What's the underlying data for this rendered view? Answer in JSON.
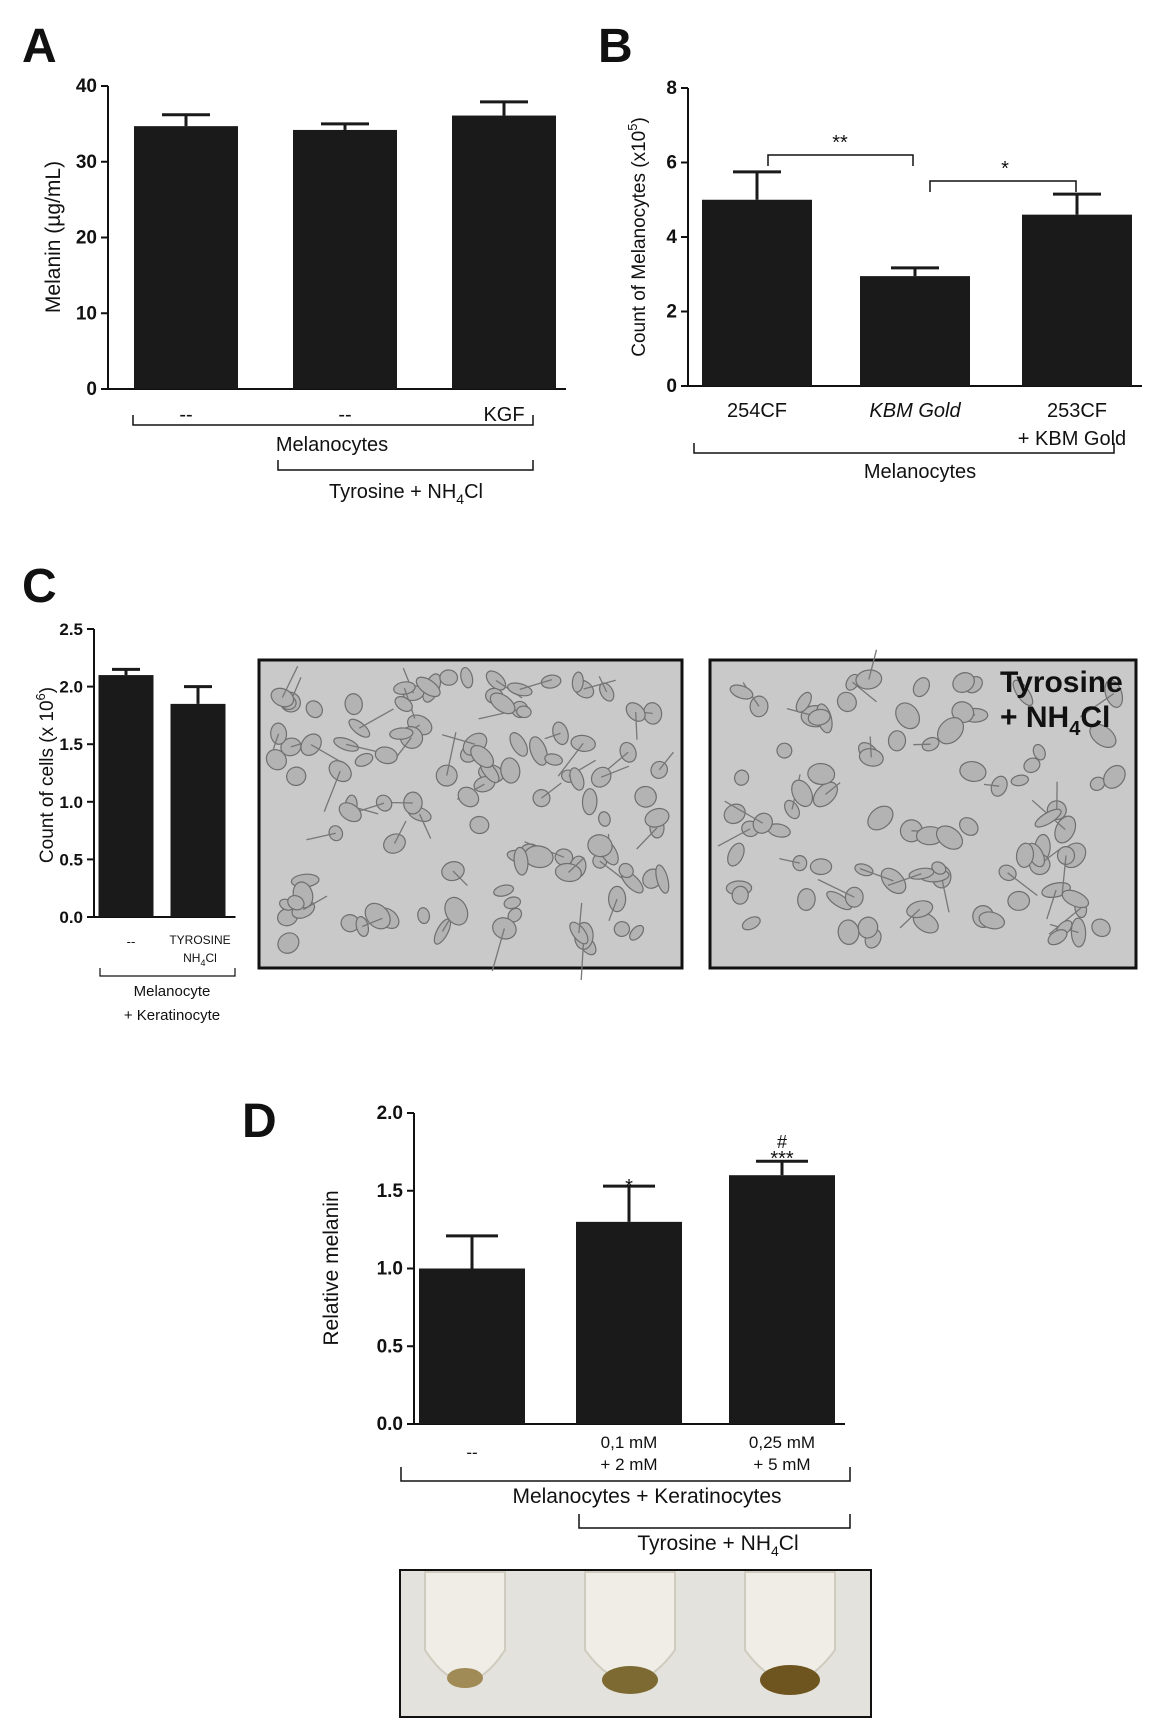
{
  "panels": {
    "A": {
      "letter": "A"
    },
    "B": {
      "letter": "B"
    },
    "C": {
      "letter": "C",
      "photo_label_line1": "Tyrosine",
      "photo_label_line2_prefix": "+ NH",
      "photo_label_line2_sub": "4",
      "photo_label_line2_suffix": "Cl"
    },
    "D": {
      "letter": "D"
    }
  },
  "colors": {
    "bar": "#1a1a1a",
    "axis": "#111111",
    "photo_bg": "#c9c9c9",
    "cell": "#8e8e8e",
    "tube_bg": "#e4e2dc",
    "pellet": "#7a6428"
  },
  "chart_data": [
    {
      "id": "A",
      "type": "bar",
      "categories": [
        "--",
        "--",
        "KGF"
      ],
      "values": [
        34.7,
        34.2,
        36.1
      ],
      "errors": [
        1.5,
        0.8,
        1.8
      ],
      "ylabel": "Melanin (µg/mL)",
      "ylim": [
        0,
        40
      ],
      "yticks": [
        "0",
        "10",
        "20",
        "30",
        "40"
      ],
      "groups": [
        {
          "label": "Melanocytes"
        },
        {
          "label_prefix": "Tyrosine + NH",
          "label_sub": "4",
          "label_suffix": "Cl"
        }
      ]
    },
    {
      "id": "B",
      "type": "bar",
      "categories": [
        "254CF",
        "KBM Gold",
        "253CF + KBM Gold"
      ],
      "category_lines": [
        [
          "254CF"
        ],
        [
          "KBM Gold"
        ],
        [
          "253CF",
          "+ KBM Gold"
        ]
      ],
      "values": [
        5.0,
        2.95,
        4.6
      ],
      "errors": [
        0.75,
        0.22,
        0.55
      ],
      "ylabel": "Count of Melanocytes (x10 5)",
      "ylabel_main": "Count of Melanocytes (x10",
      "ylabel_sup": "5",
      "ylabel_end": ")",
      "ylim": [
        0,
        8
      ],
      "yticks": [
        "0",
        "2",
        "4",
        "6",
        "8"
      ],
      "significance": [
        {
          "from": 0,
          "to": 1,
          "label": "**"
        },
        {
          "from": 1,
          "to": 2,
          "label": "*"
        }
      ],
      "groups": [
        {
          "label": "Melanocytes"
        }
      ]
    },
    {
      "id": "C",
      "type": "bar",
      "categories": [
        "--",
        "TYROSINE NH4Cl"
      ],
      "category_line2_prefix": "NH",
      "category_line2_sub": "4",
      "category_line2_suffix": "Cl",
      "category_line1": "TYROSINE",
      "values": [
        2.1,
        1.85
      ],
      "errors": [
        0.05,
        0.15
      ],
      "ylabel_main": "Count of cells (x 10",
      "ylabel_sup": "6",
      "ylabel_end": ")",
      "ylim": [
        0,
        2.5
      ],
      "yticks": [
        "0.0",
        "0.5",
        "1.0",
        "1.5",
        "2.0",
        "2.5"
      ],
      "groups": [
        {
          "label_line1": "Melanocyte",
          "label_line2": "+ Keratinocyte"
        }
      ]
    },
    {
      "id": "D",
      "type": "bar",
      "categories": [
        "--",
        "0,1 mM + 2 mM",
        "0,25 mM + 5 mM"
      ],
      "category_lines": [
        [
          "--"
        ],
        [
          "0,1 mM",
          "+ 2 mM"
        ],
        [
          "0,25 mM",
          "+ 5 mM"
        ]
      ],
      "values": [
        1.0,
        1.3,
        1.6
      ],
      "errors": [
        0.21,
        0.23,
        0.09
      ],
      "ylabel": "Relative melanin",
      "ylim": [
        0,
        2.0
      ],
      "yticks": [
        "0.0",
        "0.5",
        "1.0",
        "1.5",
        "2.0"
      ],
      "annotations": [
        {
          "bar": 1,
          "label": "*"
        },
        {
          "bar": 2,
          "label": "***"
        },
        {
          "bar": 2,
          "label": "#"
        }
      ],
      "groups": [
        {
          "label": "Melanocytes + Keratinocytes"
        },
        {
          "label_prefix": "Tyrosine + NH",
          "label_sub": "4",
          "label_suffix": "Cl"
        }
      ]
    }
  ]
}
